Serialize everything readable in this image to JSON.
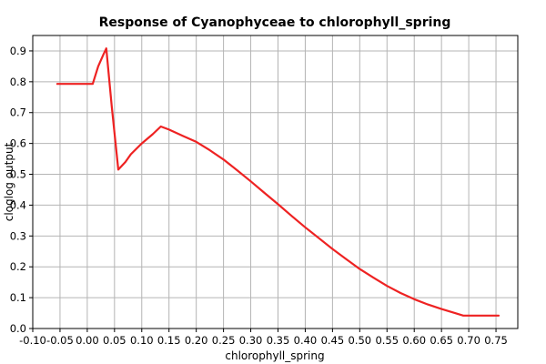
{
  "chart_data": {
    "type": "line",
    "title": "Response of Cyanophyceae to chlorophyll_spring",
    "xlabel": "chlorophyll_spring",
    "ylabel": "cloglog output",
    "xlim": [
      -0.1,
      0.79
    ],
    "ylim": [
      0.0,
      0.95
    ],
    "x_ticks": [
      "-0.10",
      "-0.05",
      "0.00",
      "0.05",
      "0.10",
      "0.15",
      "0.20",
      "0.25",
      "0.30",
      "0.35",
      "0.40",
      "0.45",
      "0.50",
      "0.55",
      "0.60",
      "0.65",
      "0.70",
      "0.75"
    ],
    "y_ticks": [
      "0.0",
      "0.1",
      "0.2",
      "0.3",
      "0.4",
      "0.5",
      "0.6",
      "0.7",
      "0.8",
      "0.9"
    ],
    "grid": true,
    "legend": "none",
    "series": [
      {
        "color": "#ee2222",
        "points": [
          [
            -0.055,
            0.793
          ],
          [
            0.01,
            0.793
          ],
          [
            0.02,
            0.85
          ],
          [
            0.03,
            0.89
          ],
          [
            0.035,
            0.908
          ],
          [
            0.045,
            0.72
          ],
          [
            0.057,
            0.515
          ],
          [
            0.07,
            0.54
          ],
          [
            0.08,
            0.565
          ],
          [
            0.1,
            0.6
          ],
          [
            0.12,
            0.63
          ],
          [
            0.135,
            0.655
          ],
          [
            0.15,
            0.645
          ],
          [
            0.175,
            0.625
          ],
          [
            0.2,
            0.605
          ],
          [
            0.225,
            0.578
          ],
          [
            0.25,
            0.548
          ],
          [
            0.275,
            0.513
          ],
          [
            0.3,
            0.477
          ],
          [
            0.325,
            0.44
          ],
          [
            0.35,
            0.403
          ],
          [
            0.375,
            0.365
          ],
          [
            0.4,
            0.328
          ],
          [
            0.425,
            0.293
          ],
          [
            0.45,
            0.258
          ],
          [
            0.475,
            0.225
          ],
          [
            0.5,
            0.193
          ],
          [
            0.525,
            0.165
          ],
          [
            0.55,
            0.138
          ],
          [
            0.575,
            0.115
          ],
          [
            0.6,
            0.095
          ],
          [
            0.625,
            0.078
          ],
          [
            0.65,
            0.063
          ],
          [
            0.675,
            0.05
          ],
          [
            0.69,
            0.042
          ],
          [
            0.755,
            0.042
          ]
        ]
      }
    ]
  }
}
